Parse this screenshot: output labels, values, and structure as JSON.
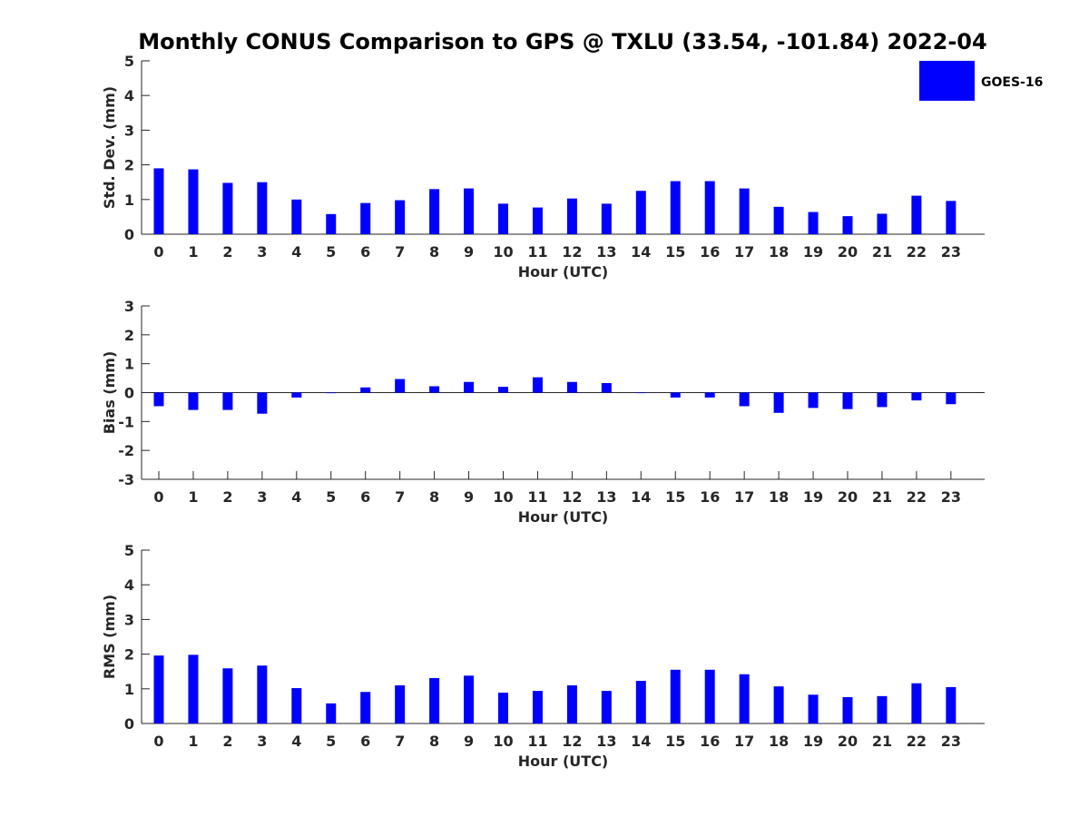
{
  "chart_data": {
    "title": "Monthly CONUS Comparison to GPS @ TXLU (33.54, -101.84) 2022-04",
    "type": "bar",
    "colors": {
      "bar": "#0000ff",
      "axis": "#262626"
    },
    "legend": {
      "entries": [
        "GOES-16"
      ],
      "placement": "top-right"
    },
    "panels": [
      {
        "type": "bar",
        "xlabel": "Hour (UTC)",
        "ylabel": "Std. Dev. (mm)",
        "ylim": [
          0,
          5
        ],
        "yticks": [
          0,
          1,
          2,
          3,
          4,
          5
        ],
        "categories": [
          "0",
          "1",
          "2",
          "3",
          "4",
          "5",
          "6",
          "7",
          "8",
          "9",
          "10",
          "11",
          "12",
          "13",
          "14",
          "15",
          "16",
          "17",
          "18",
          "19",
          "20",
          "21",
          "22",
          "23"
        ],
        "series": [
          {
            "name": "GOES-16",
            "values": [
              1.9,
              1.87,
              1.48,
              1.5,
              1.0,
              0.58,
              0.9,
              0.98,
              1.3,
              1.32,
              0.88,
              0.77,
              1.03,
              0.88,
              1.25,
              1.53,
              1.53,
              1.32,
              0.79,
              0.64,
              0.52,
              0.59,
              1.11,
              0.96
            ]
          }
        ]
      },
      {
        "type": "bar",
        "xlabel": "Hour (UTC)",
        "ylabel": "Bias (mm)",
        "ylim": [
          -3,
          3
        ],
        "yticks": [
          -3,
          -2,
          -1,
          0,
          1,
          2,
          3
        ],
        "categories": [
          "0",
          "1",
          "2",
          "3",
          "4",
          "5",
          "6",
          "7",
          "8",
          "9",
          "10",
          "11",
          "12",
          "13",
          "14",
          "15",
          "16",
          "17",
          "18",
          "19",
          "20",
          "21",
          "22",
          "23"
        ],
        "series": [
          {
            "name": "GOES-16",
            "values": [
              -0.47,
              -0.6,
              -0.6,
              -0.73,
              -0.17,
              -0.02,
              0.18,
              0.47,
              0.22,
              0.37,
              0.2,
              0.53,
              0.37,
              0.33,
              0.0,
              -0.17,
              -0.17,
              -0.47,
              -0.7,
              -0.53,
              -0.57,
              -0.5,
              -0.27,
              -0.4
            ]
          }
        ]
      },
      {
        "type": "bar",
        "xlabel": "Hour (UTC)",
        "ylabel": "RMS (mm)",
        "ylim": [
          0,
          5
        ],
        "yticks": [
          0,
          1,
          2,
          3,
          4,
          5
        ],
        "categories": [
          "0",
          "1",
          "2",
          "3",
          "4",
          "5",
          "6",
          "7",
          "8",
          "9",
          "10",
          "11",
          "12",
          "13",
          "14",
          "15",
          "16",
          "17",
          "18",
          "19",
          "20",
          "21",
          "22",
          "23"
        ],
        "series": [
          {
            "name": "GOES-16",
            "values": [
              1.96,
              1.98,
              1.59,
              1.67,
              1.02,
              0.58,
              0.91,
              1.1,
              1.31,
              1.38,
              0.89,
              0.94,
              1.1,
              0.94,
              1.23,
              1.55,
              1.55,
              1.42,
              1.07,
              0.83,
              0.76,
              0.79,
              1.16,
              1.05
            ]
          }
        ]
      }
    ]
  }
}
